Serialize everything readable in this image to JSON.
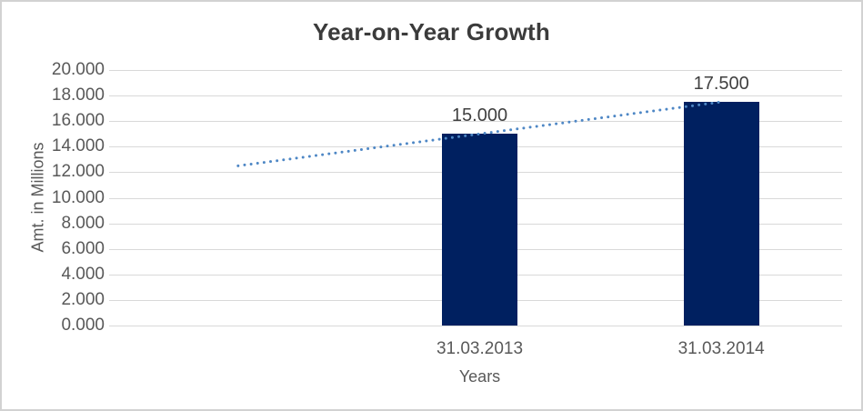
{
  "window": {
    "background": "#ffffff",
    "border_color": "#d2d2d2"
  },
  "chart_data": {
    "type": "bar",
    "title": "Year-on-Year Growth",
    "xlabel": "Years",
    "ylabel": "Amt. in Millions",
    "categories": [
      "",
      "31.03.2013",
      "31.03.2014"
    ],
    "series": [
      {
        "name": "Amt. in Millions",
        "values": [
          null,
          15.0,
          17.5
        ]
      }
    ],
    "data_labels": [
      null,
      "15.000",
      "17.500"
    ],
    "ylim": [
      0,
      20
    ],
    "ytick_step": 2,
    "ytick_labels": [
      "20.000",
      "18.000",
      "16.000",
      "14.000",
      "12.000",
      "10.000",
      "8.000",
      "6.000",
      "4.000",
      "2.000",
      "0.000"
    ],
    "grid": "horizontal",
    "legend": "none",
    "trendline": {
      "type": "linear",
      "style": "dotted",
      "start_category_index": 0,
      "end_category_index": 2,
      "start_value": 12.5,
      "end_value": 17.5
    },
    "colors": {
      "bar": "#002060",
      "trendline": "#4e87c5",
      "gridline": "#d9d9d9",
      "title_text": "#3b3b3b",
      "axis_text": "#595959",
      "data_label_text": "#404040"
    }
  }
}
